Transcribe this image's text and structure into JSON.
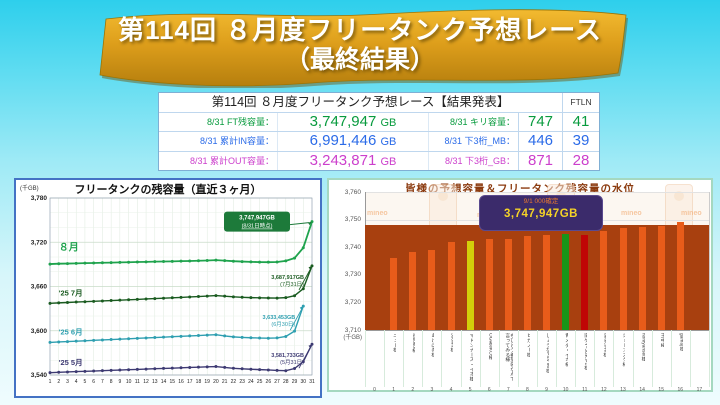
{
  "banner": {
    "line1": "第114回 ８月度フリータンク予想レース",
    "line2": "（最終結果）",
    "gold": "#DD9E1B"
  },
  "table": {
    "header": "第114回 ８月度フリータンク予想レース【結果発表】",
    "header_right": "FTLN",
    "rows": [
      {
        "label": "8/31 FT残容量：",
        "value": "3,747,947",
        "unit": "GB",
        "label2": "8/31 キリ容量：",
        "value2": "747",
        "ftln": "41",
        "color": "#089B3E"
      },
      {
        "label": "8/31 累計IN容量：",
        "value": "6,991,446",
        "unit": "GB",
        "label2": "8/31 下3桁_MB：",
        "value2": "446",
        "ftln": "39",
        "color": "#2B6BE8"
      },
      {
        "label": "8/31 累計OUT容量：",
        "value": "3,243,871",
        "unit": "GB",
        "label2": "8/31 下3桁_GB：",
        "value2": "871",
        "ftln": "28",
        "color": "#CC3FCC"
      }
    ]
  },
  "chart_data": [
    {
      "type": "line",
      "title": "フリータンクの残容量（直近３ヶ月）",
      "ylabel": "(千GB)",
      "ylim": [
        3540,
        3780
      ],
      "yticks": [
        3780,
        3720,
        3660,
        3600,
        3540
      ],
      "x_labels": [
        "1",
        "2",
        "3",
        "4",
        "5",
        "6",
        "7",
        "8",
        "9",
        "10",
        "11",
        "12",
        "13",
        "14",
        "15",
        "16",
        "17",
        "18",
        "19",
        "20",
        "21",
        "22",
        "23",
        "24",
        "25",
        "26",
        "27",
        "28",
        "29",
        "30",
        "31"
      ],
      "grid": true,
      "series": [
        {
          "name": "８月",
          "color": "#1FA34D",
          "values": [
            3690.4,
            3690.9,
            3691.1,
            3691.4,
            3691.7,
            3691.9,
            3692.2,
            3692.4,
            3692.7,
            3692.9,
            3693.2,
            3693.4,
            3693.7,
            3693.9,
            3694.1,
            3694.4,
            3694.6,
            3694.9,
            3695.3,
            3695.8,
            3695.1,
            3694.3,
            3693.8,
            3693.4,
            3693.1,
            3693.0,
            3693.2,
            3694.8,
            3698.5,
            3712.5,
            3747.947
          ]
        },
        {
          "name": "'25 7月",
          "color": "#1A5B20",
          "values": [
            3637.2,
            3637.8,
            3638.3,
            3638.9,
            3639.4,
            3639.9,
            3640.4,
            3641.0,
            3641.5,
            3642.0,
            3642.5,
            3643.1,
            3643.6,
            3644.1,
            3644.7,
            3645.2,
            3645.8,
            3646.4,
            3647.0,
            3647.7,
            3646.9,
            3646.0,
            3645.4,
            3644.9,
            3644.6,
            3644.4,
            3644.3,
            3644.9,
            3647.5,
            3657.0,
            3687.917
          ]
        },
        {
          "name": "'25 6月",
          "color": "#2E9FB0",
          "values": [
            3584.2,
            3584.8,
            3585.3,
            3585.9,
            3586.4,
            3587.0,
            3587.5,
            3588.1,
            3588.6,
            3589.1,
            3589.7,
            3590.2,
            3590.8,
            3591.3,
            3591.9,
            3592.4,
            3593.0,
            3593.5,
            3594.1,
            3594.6,
            3593.0,
            3591.7,
            3591.0,
            3590.5,
            3590.1,
            3589.9,
            3590.3,
            3592.2,
            3599.5,
            3633.453
          ]
        },
        {
          "name": "'25 5月",
          "color": "#3D3A72",
          "values": [
            3543.2,
            3543.7,
            3544.1,
            3544.6,
            3545.0,
            3545.4,
            3545.9,
            3546.3,
            3546.7,
            3547.2,
            3547.6,
            3548.0,
            3548.5,
            3548.9,
            3549.3,
            3549.8,
            3550.2,
            3550.6,
            3551.1,
            3551.5,
            3550.3,
            3549.1,
            3548.4,
            3547.8,
            3547.3,
            3546.8,
            3546.2,
            3545.8,
            3548.8,
            3558.0,
            3581.733
          ]
        }
      ],
      "annotations": [
        {
          "series": 0,
          "line1": "3,747,947GB",
          "line2": "(8/31日時点)",
          "style": "box",
          "box_color": "#1D7A3A"
        },
        {
          "series": 1,
          "line1": "3,687,917GB",
          "line2": "(7月31日)"
        },
        {
          "series": 2,
          "line1": "3,633,453GB",
          "line2": "(6月30日)"
        },
        {
          "series": 3,
          "line1": "3,581,733GB",
          "line2": "(5月31日)"
        }
      ]
    },
    {
      "type": "bar",
      "title": "皆様の予想容量＆フリータンク残容量の水位",
      "ylabel": "(千GB)",
      "ylim": [
        3710,
        3760
      ],
      "yticks": [
        3760,
        3750,
        3740,
        3730,
        3720,
        3710
      ],
      "water_level": 3747.947,
      "water_color": "#A8400F",
      "callout": {
        "line1": "9/1 000確定",
        "line2": "3,747,947GB"
      },
      "categories": [
        "ニュー様",
        "Satoko様",
        "あけぼの様",
        "50own様",
        "マドンナーズ・イオ様",
        "OG系eKO様",
        "もひとつ希望袋なんて言ってみる様",
        "ヒガノー様",
        "しょうなPSV'95様",
        "青メダ・イカ様",
        "旧ゲY−JGK.P1様",
        "detective様",
        "ショーンズク様",
        "hontyansei様",
        "王中様",
        "gamaj様"
      ],
      "values": [
        3736.2,
        3738.2,
        3739.0,
        3741.8,
        3742.1,
        3742.9,
        3743.0,
        3743.9,
        3744.4,
        3744.9,
        3744.6,
        3745.9,
        3746.9,
        3747.4,
        3747.8,
        3749.0
      ],
      "bar_colors": [
        "orange",
        "orange",
        "orange",
        "orange",
        "yellow",
        "orange",
        "orange",
        "orange",
        "orange",
        "green",
        "red",
        "orange",
        "orange",
        "orange",
        "orange",
        "orange"
      ],
      "color_map": {
        "orange": "#E85C1A",
        "yellow": "#D3CE0A",
        "green": "#189418",
        "red": "#C00505"
      },
      "slot_numbers": [
        "0",
        "1",
        "2",
        "3",
        "4",
        "5",
        "6",
        "7",
        "8",
        "9",
        "10",
        "11",
        "12",
        "13",
        "14",
        "15",
        "16",
        "17"
      ],
      "watermark": "mineo"
    }
  ]
}
